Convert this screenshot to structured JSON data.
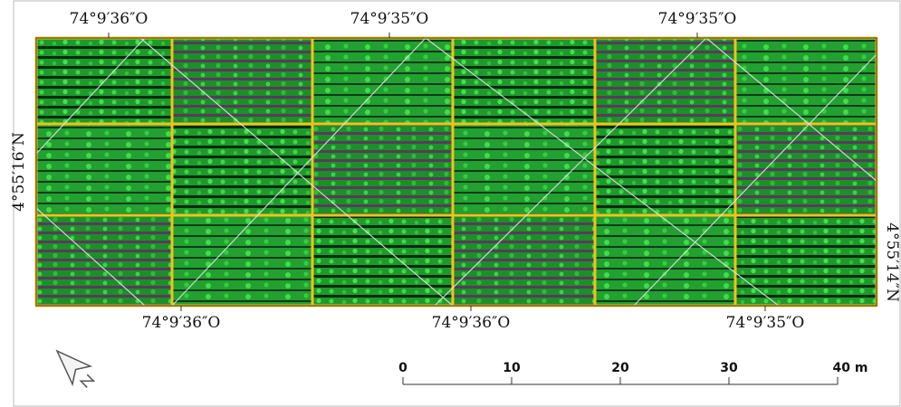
{
  "map": {
    "top_labels": [
      "74°9′36″O",
      "74°9′35″O",
      "74°9′35″O"
    ],
    "bottom_labels": [
      "74°9′36″O",
      "74°9′36″O",
      "74°9′35″O"
    ],
    "left_label": "4°55′16″N",
    "right_label": "4°55′14″N",
    "scale_bar": {
      "ticks": [
        0,
        10,
        20,
        30,
        {
          "value": 40,
          "label": "40 m"
        }
      ]
    }
  }
}
